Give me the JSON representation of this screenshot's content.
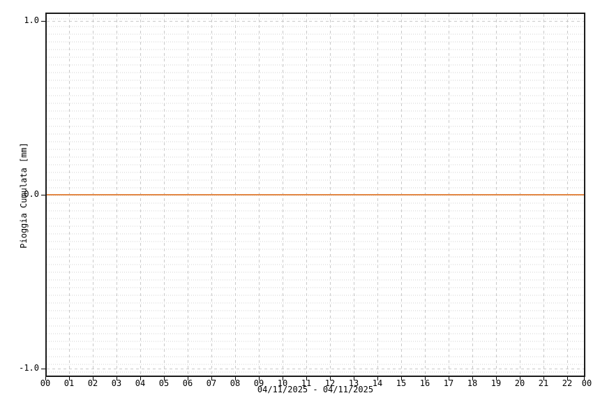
{
  "chart": {
    "background": "#ffffff"
  },
  "chart_data": {
    "type": "line",
    "title": "",
    "ylabel": "Pioggia Cumulata [mm]",
    "xlabel": "04/11/2025 - 04/11/2025",
    "x_tick_labels": [
      "00",
      "01",
      "02",
      "03",
      "04",
      "05",
      "06",
      "07",
      "08",
      "09",
      "10",
      "11",
      "12",
      "13",
      "14",
      "15",
      "16",
      "17",
      "18",
      "19",
      "20",
      "21",
      "22",
      "00"
    ],
    "y_tick_labels": [
      "1.0",
      "0.0",
      "-1.0"
    ],
    "y_tick_values": [
      1.0,
      0.0,
      -1.0
    ],
    "ylim": [
      -1.05,
      1.05
    ],
    "grid": {
      "major_style": "dashed",
      "minor_style": "dotted",
      "major_color": "#c9c9c9",
      "minor_color": "#e8e8e8"
    },
    "legend_position": "none",
    "series": [
      {
        "name": "Pioggia Cumulata",
        "color": "#E28643",
        "values": [
          0,
          0,
          0,
          0,
          0,
          0,
          0,
          0,
          0,
          0,
          0,
          0,
          0,
          0,
          0,
          0,
          0,
          0,
          0,
          0,
          0,
          0,
          0,
          0
        ]
      }
    ]
  }
}
